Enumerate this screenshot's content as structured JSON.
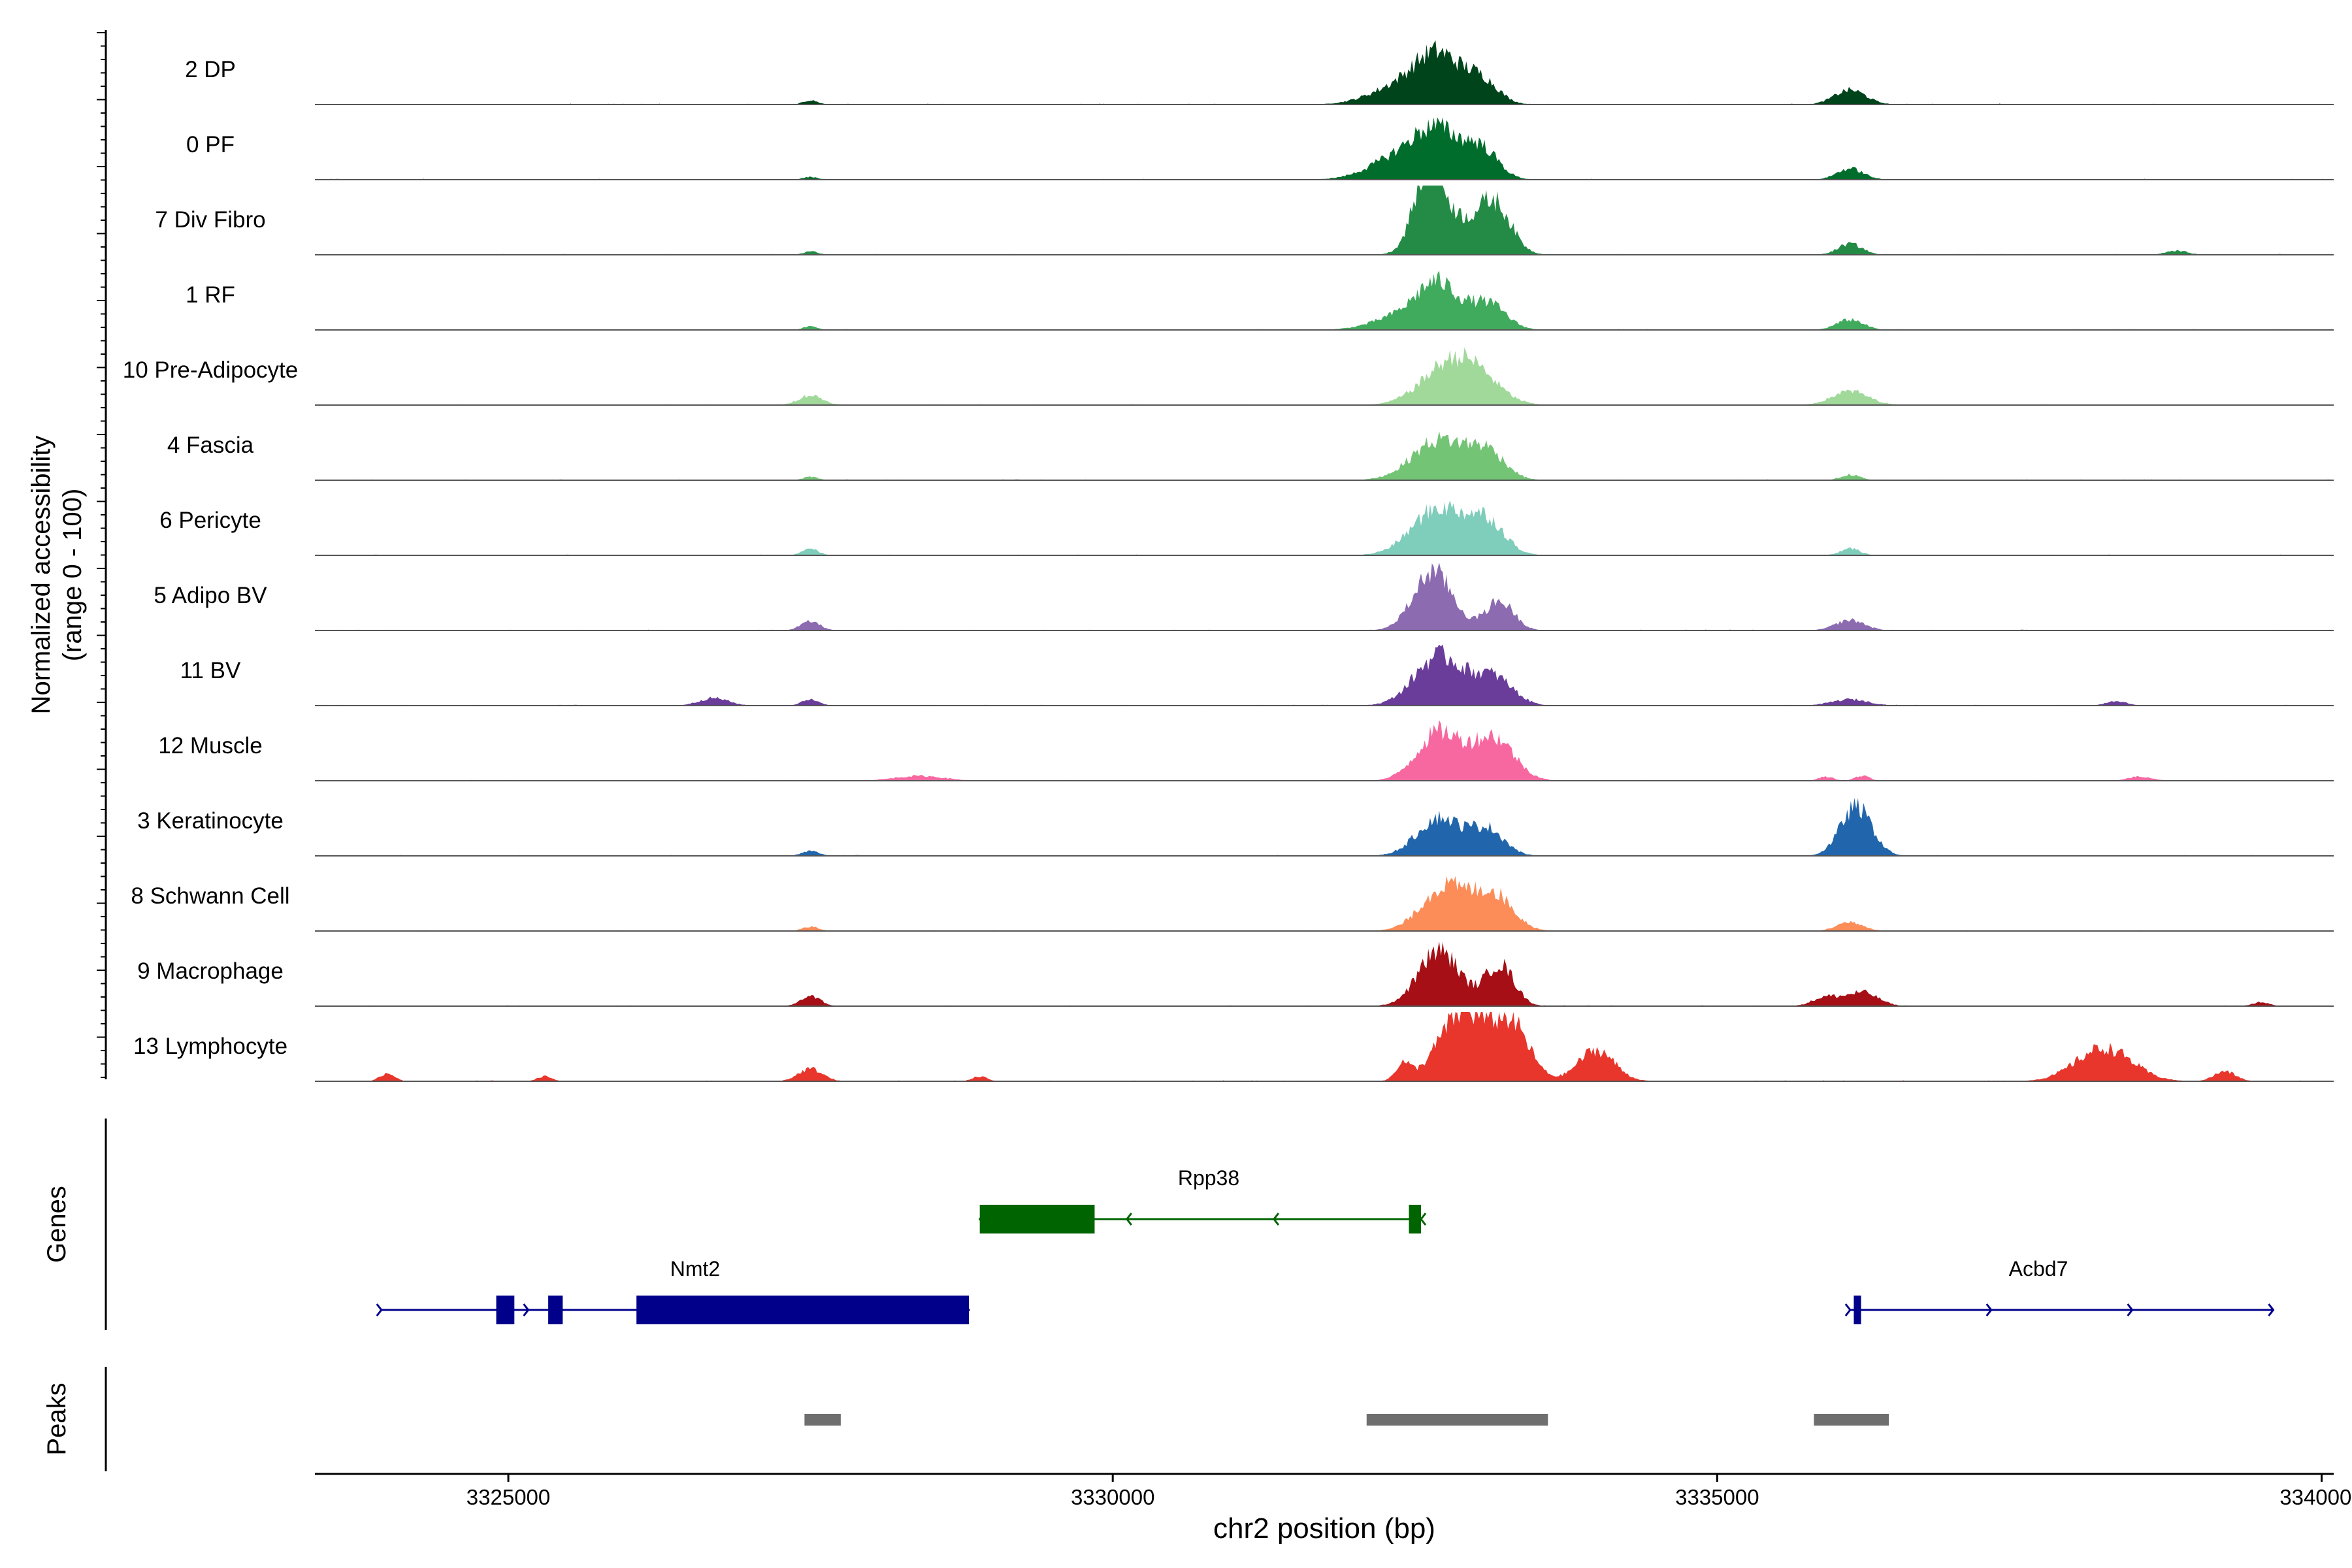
{
  "chart_data": {
    "type": "area",
    "title": "",
    "ylabel": "Normalized accessibility",
    "ylabel_range": "(range 0 - 100)",
    "xlabel": "chr2 position (bp)",
    "xlim": [
      3323400,
      3340100
    ],
    "ylim": [
      0,
      100
    ],
    "x_ticks": [
      {
        "value": 3325000,
        "label": "3325000"
      },
      {
        "value": 3330000,
        "label": "3330000"
      },
      {
        "value": 3335000,
        "label": "3335000"
      },
      {
        "value": 3340000,
        "label": "3340000"
      }
    ],
    "series": [
      {
        "name": "2 DP",
        "color": "#00441b",
        "peaks": [
          [
            3327500,
            6,
            60
          ],
          [
            3332400,
            28,
            250
          ],
          [
            3332700,
            62,
            180
          ],
          [
            3333050,
            34,
            140
          ],
          [
            3336100,
            21,
            130
          ]
        ]
      },
      {
        "name": "0 PF",
        "color": "#006d2c",
        "peaks": [
          [
            3327500,
            4,
            60
          ],
          [
            3332400,
            35,
            250
          ],
          [
            3332700,
            58,
            180
          ],
          [
            3333050,
            42,
            140
          ],
          [
            3336100,
            16,
            110
          ]
        ]
      },
      {
        "name": "7 Div Fibro",
        "color": "#238b45",
        "peaks": [
          [
            3327500,
            5,
            60
          ],
          [
            3332600,
            95,
            110
          ],
          [
            3332750,
            55,
            180
          ],
          [
            3333150,
            75,
            140
          ],
          [
            3336100,
            16,
            100
          ],
          [
            3338800,
            6,
            90
          ]
        ]
      },
      {
        "name": "1 RF",
        "color": "#41ab5d",
        "peaks": [
          [
            3327500,
            5,
            60
          ],
          [
            3332450,
            24,
            250
          ],
          [
            3332700,
            55,
            160
          ],
          [
            3333100,
            38,
            150
          ],
          [
            3336100,
            15,
            110
          ]
        ]
      },
      {
        "name": "10 Pre-Adipocyte",
        "color": "#a1d99b",
        "peaks": [
          [
            3327500,
            14,
            100
          ],
          [
            3332750,
            47,
            220
          ],
          [
            3333000,
            37,
            200
          ],
          [
            3336100,
            20,
            150
          ]
        ]
      },
      {
        "name": "4 Fascia",
        "color": "#74c476",
        "peaks": [
          [
            3327500,
            5,
            60
          ],
          [
            3332700,
            58,
            220
          ],
          [
            3333100,
            38,
            150
          ],
          [
            3336100,
            8,
            80
          ]
        ]
      },
      {
        "name": "6 Pericyte",
        "color": "#7fcdbb",
        "peaks": [
          [
            3327500,
            9,
            70
          ],
          [
            3332700,
            68,
            220
          ],
          [
            3333100,
            44,
            150
          ],
          [
            3336100,
            10,
            80
          ]
        ]
      },
      {
        "name": "5 Adipo BV",
        "color": "#8c6bb1",
        "peaks": [
          [
            3327500,
            13,
            80
          ],
          [
            3332650,
            85,
            160
          ],
          [
            3333200,
            42,
            120
          ],
          [
            3336100,
            15,
            120
          ]
        ]
      },
      {
        "name": "11 BV",
        "color": "#6a3d9a",
        "peaks": [
          [
            3326700,
            11,
            120
          ],
          [
            3327500,
            9,
            70
          ],
          [
            3332700,
            72,
            200
          ],
          [
            3333150,
            40,
            160
          ],
          [
            3336100,
            9,
            150
          ],
          [
            3338300,
            7,
            80
          ]
        ]
      },
      {
        "name": "12 Muscle",
        "color": "#f768a1",
        "peaks": [
          [
            3328400,
            7,
            200
          ],
          [
            3332700,
            70,
            180
          ],
          [
            3333150,
            62,
            170
          ],
          [
            3335900,
            6,
            60
          ],
          [
            3336200,
            7,
            60
          ],
          [
            3338500,
            6,
            100
          ]
        ]
      },
      {
        "name": "3 Keratinocyte",
        "color": "#2166ac",
        "peaks": [
          [
            3327500,
            7,
            70
          ],
          [
            3332700,
            55,
            180
          ],
          [
            3333100,
            38,
            140
          ],
          [
            3336150,
            70,
            130
          ]
        ]
      },
      {
        "name": "8 Schwann Cell",
        "color": "#fc8d59",
        "peaks": [
          [
            3327500,
            6,
            70
          ],
          [
            3332750,
            64,
            190
          ],
          [
            3333150,
            52,
            160
          ],
          [
            3336100,
            13,
            110
          ]
        ]
      },
      {
        "name": "9 Macrophage",
        "color": "#a50f15",
        "peaks": [
          [
            3327500,
            15,
            80
          ],
          [
            3332700,
            80,
            170
          ],
          [
            3333200,
            60,
            120
          ],
          [
            3335900,
            13,
            110
          ],
          [
            3336200,
            20,
            130
          ],
          [
            3339500,
            6,
            70
          ]
        ]
      },
      {
        "name": "13 Lymphocyte",
        "color": "#e8362c",
        "peaks": [
          [
            3324000,
            12,
            60
          ],
          [
            3325300,
            7,
            60
          ],
          [
            3327500,
            18,
            100
          ],
          [
            3328900,
            7,
            60
          ],
          [
            3332400,
            24,
            60
          ],
          [
            3332900,
            100,
            200
          ],
          [
            3333300,
            76,
            150
          ],
          [
            3334000,
            45,
            150
          ],
          [
            3338200,
            48,
            230
          ],
          [
            3339200,
            14,
            90
          ]
        ]
      }
    ]
  },
  "genes_track": {
    "label": "Genes",
    "genes": [
      {
        "name": "Rpp38",
        "color": "#006400",
        "strand": "-",
        "start": 3328900,
        "end": 3332550,
        "exons": [
          [
            3328900,
            3329850
          ],
          [
            3332450,
            3332550
          ]
        ]
      },
      {
        "name": "Nmt2",
        "color": "#00008b",
        "strand": "+",
        "start": 3323950,
        "end": 3328810,
        "exons": [
          [
            3324900,
            3325050
          ],
          [
            3325330,
            3325450
          ],
          [
            3326060,
            3328810
          ]
        ]
      },
      {
        "name": "Acbd7",
        "color": "#00008b",
        "strand": "+",
        "start": 3336100,
        "end": 3339600,
        "exons": [
          [
            3336130,
            3336190
          ]
        ]
      }
    ]
  },
  "peaks_track": {
    "label": "Peaks",
    "color": "#6e6e6e",
    "regions": [
      [
        3327450,
        3327750
      ],
      [
        3332100,
        3333600
      ],
      [
        3335800,
        3336420
      ]
    ]
  }
}
